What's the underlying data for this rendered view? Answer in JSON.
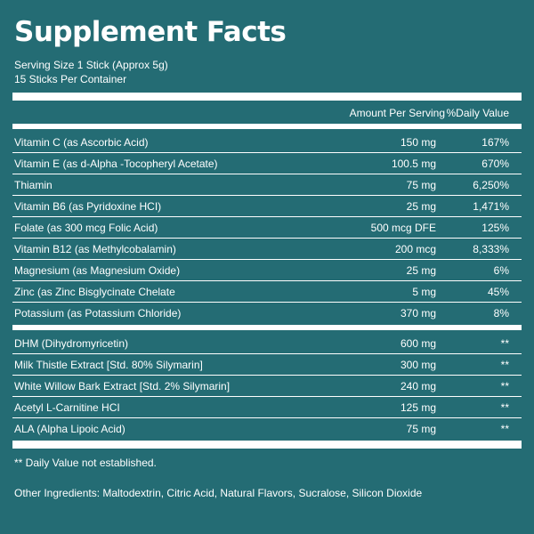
{
  "title": "Supplement Facts",
  "serving_size": "Serving Size 1 Stick (Approx 5g)",
  "servings_per_container": "15 Sticks Per Container",
  "header": {
    "amount_label": "Amount Per Serving",
    "dv_label": "%Daily Value"
  },
  "vitamins": [
    {
      "name": "Vitamin C (as Ascorbic Acid)",
      "amount": "150 mg",
      "dv": "167%"
    },
    {
      "name": "Vitamin E (as d-Alpha -Tocopheryl Acetate)",
      "amount": "100.5 mg",
      "dv": "670%"
    },
    {
      "name": "Thiamin",
      "amount": "75 mg",
      "dv": "6,250%"
    },
    {
      "name": "Vitamin B6 (as Pyridoxine HCI)",
      "amount": "25 mg",
      "dv": "1,471%"
    },
    {
      "name": "Folate (as 300 mcg Folic Acid)",
      "amount": "500 mcg DFE",
      "dv": "125%"
    },
    {
      "name": "Vitamin B12 (as Methylcobalamin)",
      "amount": "200 mcg",
      "dv": "8,333%"
    },
    {
      "name": "Magnesium (as Magnesium Oxide)",
      "amount": "25 mg",
      "dv": "6%"
    },
    {
      "name": "Zinc (as Zinc Bisglycinate Chelate",
      "amount": "5 mg",
      "dv": "45%"
    },
    {
      "name": "Potassium (as Potassium Chloride)",
      "amount": "370 mg",
      "dv": "8%"
    }
  ],
  "others": [
    {
      "name": "DHM (Dihydromyricetin)",
      "amount": "600 mg",
      "dv": "**"
    },
    {
      "name": "Milk Thistle Extract [Std. 80% Silymarin]",
      "amount": "300 mg",
      "dv": "**"
    },
    {
      "name": "White Willow Bark Extract [Std. 2% Silymarin]",
      "amount": "240 mg",
      "dv": "**"
    },
    {
      "name": "Acetyl L-Carnitine HCI",
      "amount": "125 mg",
      "dv": "**"
    },
    {
      "name": "ALA (Alpha Lipoic Acid)",
      "amount": "75 mg",
      "dv": "**"
    }
  ],
  "footnote": "** Daily Value not established.",
  "other_ingredients": "Other Ingredients: Maltodextrin, Citric Acid, Natural Flavors, Sucralose, Silicon Dioxide",
  "colors": {
    "background": "#246c74",
    "foreground": "#ffffff"
  }
}
